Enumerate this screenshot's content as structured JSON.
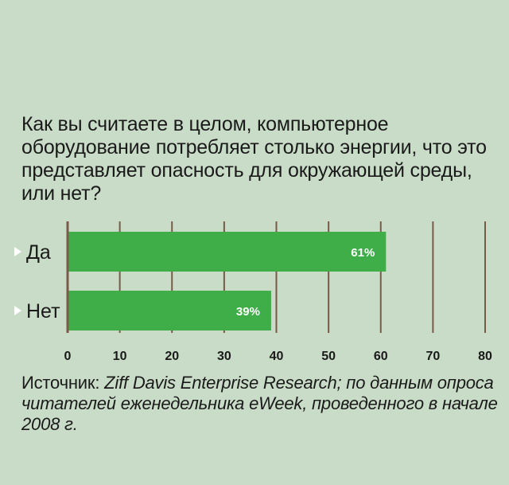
{
  "title": "Как вы считаете в целом, компьютерное оборудование потребляет столько энергии, что это представляет опасность для окружающей среды, или нет?",
  "source": {
    "prefix": "Источник: ",
    "italic": "Ziff Davis Enterprise Research; по данным опроса читателей еженедельника eWeek, проведенного в начале 2008 г."
  },
  "chart_data": {
    "type": "bar",
    "orientation": "horizontal",
    "categories": [
      "Да",
      "Нет"
    ],
    "values": [
      61,
      39
    ],
    "value_labels": [
      "61%",
      "39%"
    ],
    "xlim": [
      0,
      80
    ],
    "xticks": [
      0,
      10,
      20,
      30,
      40,
      50,
      60,
      70,
      80
    ],
    "grid": true,
    "bar_color": "#3fae49",
    "grid_color": "#7a5a48",
    "label_marker_color": "#ffffff"
  }
}
